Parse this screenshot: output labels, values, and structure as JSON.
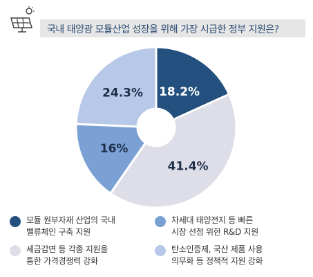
{
  "chart_data": {
    "type": "pie",
    "variant": "donut",
    "title": "국내 태양광 모듈산업 성장을 위해 가장 시급한 정부 지원은?",
    "slices": [
      {
        "label": "모듈 원부자재 산업의 국내 밸류체인 구축 지원",
        "value": 18.2,
        "display": "18.2%",
        "color": "#23507e"
      },
      {
        "label": "세금감면 등 각종 지원을 통한 가격경쟁력 강화",
        "value": 41.4,
        "display": "41.4%",
        "color": "#dedee9"
      },
      {
        "label": "차세대 태양전지 등 빠른 시장 선점 위한 R&D 지원",
        "value": 16,
        "display": "16%",
        "color": "#7aa0d4"
      },
      {
        "label": "탄소인증제, 국산 제품 사용 의무화 등 정책적 지원 강화",
        "value": 24.3,
        "display": "24.3%",
        "color": "#b8c8e8"
      }
    ],
    "legend": "bottom"
  },
  "legend_items": [
    {
      "line1": "모듈 원부자재 산업의 국내",
      "line2": "밸류체인 구축 지원",
      "color": "#23507e"
    },
    {
      "line1": "차세대 태양전지 등 빠른",
      "line2": "시장 선점 위한 R&D 지원",
      "color": "#7aa0d4"
    },
    {
      "line1": "세금감면 등 각종 지원을",
      "line2": "통한 가격경쟁력 강화",
      "color": "#dedee9"
    },
    {
      "line1": "탄소인증제, 국산 제품 사용",
      "line2": "의무화 등 정책적 지원 강화",
      "color": "#b8c8e8"
    }
  ],
  "header": {
    "icon": "solar-panel-icon"
  }
}
